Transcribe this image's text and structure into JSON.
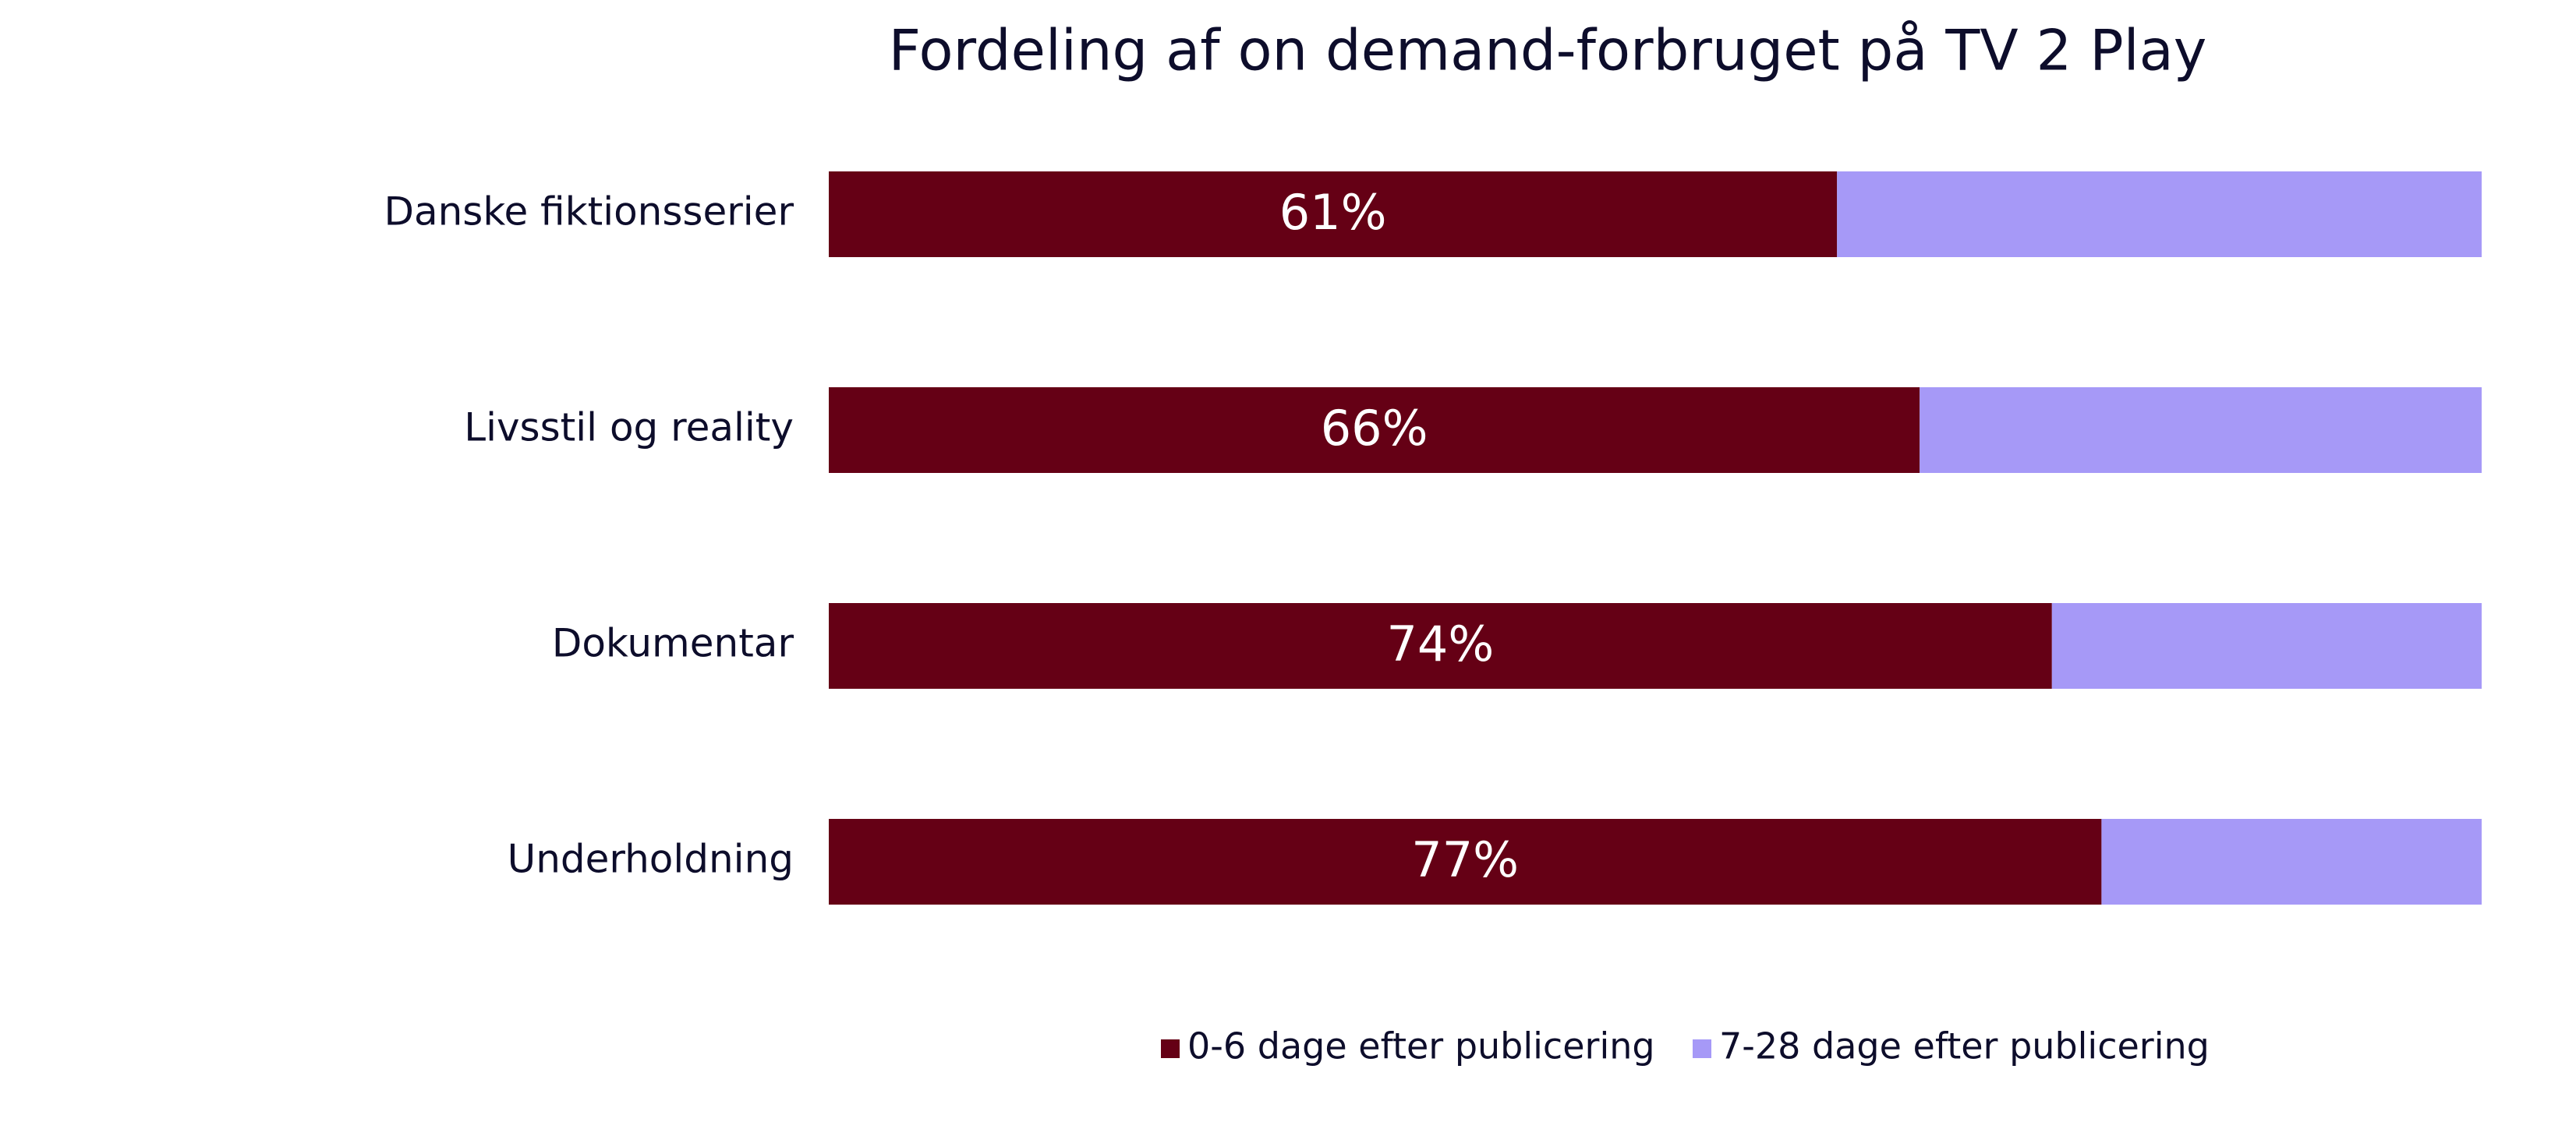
{
  "chart_data": {
    "type": "stacked-bar-horizontal",
    "title": "Fordeling af on demand-forbruget på TV 2 Play",
    "categories": [
      "Danske fiktionsserier",
      "Livsstil og reality",
      "Dokumentar",
      "Underholdning"
    ],
    "series": [
      {
        "name": "0-6 dage efter publicering",
        "color": "#650015",
        "values": [
          61,
          66,
          74,
          77
        ],
        "value_labels": [
          "61%",
          "66%",
          "74%",
          "77%"
        ]
      },
      {
        "name": "7-28 dage efter publicering",
        "color": "#a699f7",
        "values": [
          39,
          34,
          26,
          23
        ]
      }
    ],
    "xlim": [
      0,
      100
    ]
  }
}
